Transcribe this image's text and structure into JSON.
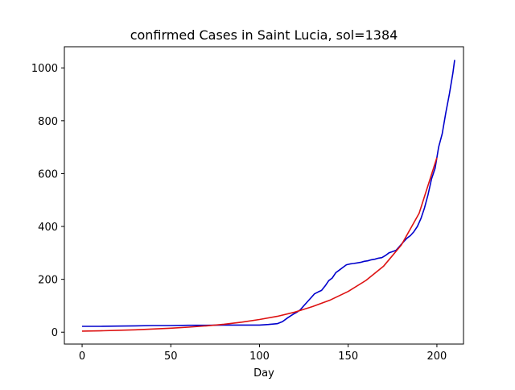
{
  "chart_data": {
    "type": "line",
    "title": "confirmed Cases in Saint Lucia, sol=1384",
    "xlabel": "Day",
    "ylabel": "",
    "xlim": [
      -10,
      215
    ],
    "ylim": [
      -45,
      1080
    ],
    "xticks": [
      0,
      50,
      100,
      150,
      200
    ],
    "yticks": [
      0,
      200,
      400,
      600,
      800,
      1000
    ],
    "grid": false,
    "legend": "none",
    "series": [
      {
        "color": "#0000cc",
        "x": [
          0,
          10,
          20,
          30,
          40,
          50,
          60,
          70,
          80,
          90,
          100,
          105,
          110,
          113,
          116,
          119,
          121,
          123,
          125,
          127,
          129,
          131,
          133,
          135,
          137,
          139,
          141,
          143,
          145,
          147,
          149,
          151,
          153,
          155,
          157,
          159,
          161,
          163,
          165,
          167,
          169,
          171,
          173,
          175,
          177,
          179,
          181,
          183,
          185,
          187,
          189,
          191,
          193,
          195,
          197,
          199,
          201,
          203,
          205,
          207,
          209,
          210
        ],
        "y": [
          22,
          22,
          23,
          24,
          25,
          25,
          26,
          26,
          27,
          27,
          27,
          29,
          32,
          40,
          55,
          68,
          75,
          85,
          100,
          115,
          130,
          145,
          152,
          158,
          175,
          195,
          205,
          225,
          235,
          245,
          255,
          258,
          260,
          262,
          264,
          268,
          270,
          274,
          276,
          280,
          282,
          290,
          300,
          305,
          310,
          325,
          340,
          355,
          365,
          380,
          400,
          430,
          470,
          520,
          580,
          620,
          700,
          750,
          830,
          900,
          980,
          1030
        ]
      },
      {
        "color": "#dd1111",
        "x": [
          0,
          10,
          20,
          30,
          40,
          50,
          60,
          70,
          80,
          90,
          100,
          110,
          120,
          130,
          140,
          150,
          160,
          170,
          180,
          190,
          200
        ],
        "y": [
          4,
          5,
          7,
          9,
          12,
          15,
          19,
          24,
          30,
          38,
          48,
          60,
          76,
          97,
          122,
          154,
          196,
          250,
          330,
          450,
          660
        ]
      }
    ]
  }
}
